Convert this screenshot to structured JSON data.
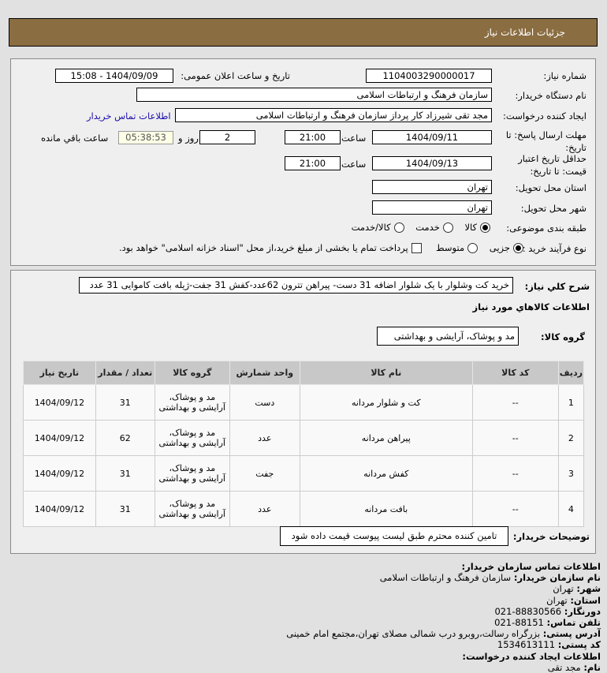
{
  "header": {
    "title": "جزئیات اطلاعات نیاز"
  },
  "form": {
    "need_number_label": "شماره نیاز:",
    "need_number": "1104003290000017",
    "announce_label": "تاریخ و ساعت اعلان عمومی:",
    "announce_value": "1404/09/09 - 15:08",
    "buyer_org_label": "نام دستگاه خریدار:",
    "buyer_org": "سازمان فرهنگ و ارتباطات اسلامی",
    "creator_label": "ایجاد کننده درخواست:",
    "creator": "مجد تقی شیرزاد کار پرداز  سازمان فرهنگ و ارتباطات اسلامی",
    "contact_link": "اطلاعات تماس خریدار",
    "reply_deadline_label": "مهلت ارسال پاسخ: تا تاریخ:",
    "reply_date": "1404/09/11",
    "time_label": "ساعت",
    "reply_time": "21:00",
    "days": "2",
    "days_label": "روز و",
    "remaining": "05:38:53",
    "remaining_label": "ساعت باقي مانده",
    "price_validity_label": "حداقل تاریخ اعتبار قیمت: تا تاریخ:",
    "price_date": "1404/09/13",
    "price_time": "21:00",
    "province_label": "استان محل تحویل:",
    "province": "تهران",
    "city_label": "شهر محل تحویل:",
    "city": "تهران",
    "category_label": "طبقه بندی موضوعی:",
    "category_options": [
      "کالا",
      "خدمت",
      "کالا/خدمت"
    ],
    "process_label": "نوع فرآیند خرید :",
    "process_options": [
      "جزیی",
      "متوسط"
    ],
    "payment_note": "پرداخت تمام یا بخشی از مبلغ خرید،از محل \"اسناد خزانه اسلامی\" خواهد بود."
  },
  "details": {
    "description_label": "شرح كلي نياز:",
    "description": "خرید کت وشلوار با یک شلوار اضافه 31 دست- پیراهن تترون 62عدد-کفش 31 جفت-ژیله بافت کاموایی 31 عدد",
    "goods_info_title": "اطلاعات كالاهاي مورد نياز",
    "goods_group_label": "گروه کالا:",
    "goods_group": "مد و پوشاک، آرایشی و بهداشتی",
    "table": {
      "headers": [
        "ردیف",
        "کد کالا",
        "نام کالا",
        "واحد شمارش",
        "گروه کالا",
        "تعداد / مقدار",
        "تاریخ نیاز"
      ],
      "rows": [
        [
          "1",
          "--",
          "کت و شلوار مردانه",
          "دست",
          "مد و پوشاک، آرایشی و بهداشتی",
          "31",
          "1404/09/12"
        ],
        [
          "2",
          "--",
          "پیراهن مردانه",
          "عدد",
          "مد و پوشاک، آرایشی و بهداشتی",
          "62",
          "1404/09/12"
        ],
        [
          "3",
          "--",
          "کفش مردانه",
          "جفت",
          "مد و پوشاک، آرایشی و بهداشتی",
          "31",
          "1404/09/12"
        ],
        [
          "4",
          "--",
          "بافت مردانه",
          "عدد",
          "مد و پوشاک، آرایشی و بهداشتی",
          "31",
          "1404/09/12"
        ]
      ]
    },
    "buyer_notes_label": "توضیحات خریدار:",
    "buyer_notes": "تامین کننده محترم طبق لیست پیوست قیمت داده شود"
  },
  "contact": {
    "title": "اطلاعات تماس سازمان خریدار:",
    "lines": [
      {
        "k": "نام سازمان خریدار:",
        "v": "سازمان فرهنگ و ارتباطات اسلامی"
      },
      {
        "k": "شهر:",
        "v": "تهران"
      },
      {
        "k": "استان:",
        "v": "تهران"
      },
      {
        "k": "دورنگار:",
        "v": "88830566-021"
      },
      {
        "k": "تلفن تماس:",
        "v": "88151-021"
      },
      {
        "k": "آدرس پستی:",
        "v": "بزرگراه رسالت،روبرو درب شمالی مصلای تهران،مجتمع امام خمینی"
      },
      {
        "k": "کد پستی:",
        "v": "1534613111"
      }
    ],
    "creator_title": "اطلاعات ایجاد کننده درخواست:",
    "creator_line": {
      "k": "نام:",
      "v": "مجد تقی"
    }
  },
  "colors": {
    "header": "#8b6d42",
    "link": "#1a0dab",
    "remaining_bg": "#ffffe6"
  }
}
